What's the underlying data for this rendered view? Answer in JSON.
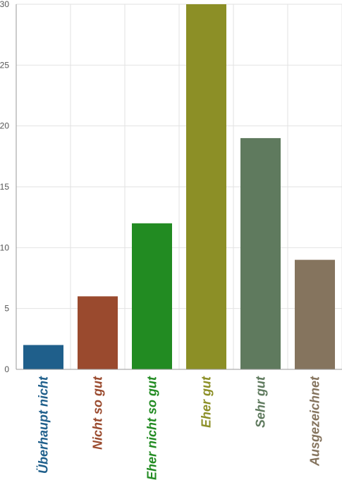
{
  "chart_data": {
    "type": "bar",
    "categories": [
      "Überhaupt nicht",
      "Nicht so gut",
      "Eher nicht so gut",
      "Eher gut",
      "Sehr gut",
      "Ausgezeichnet"
    ],
    "values": [
      2,
      6,
      12,
      30,
      19,
      9
    ],
    "colors": [
      "#1f5f8b",
      "#9a4a2e",
      "#228b22",
      "#8c8f26",
      "#5f7a5e",
      "#85745e"
    ],
    "ylim": [
      0,
      30
    ],
    "yticks": [
      0,
      5,
      10,
      15,
      20,
      25,
      30
    ],
    "grid": true,
    "title": "",
    "xlabel": "",
    "ylabel": ""
  }
}
